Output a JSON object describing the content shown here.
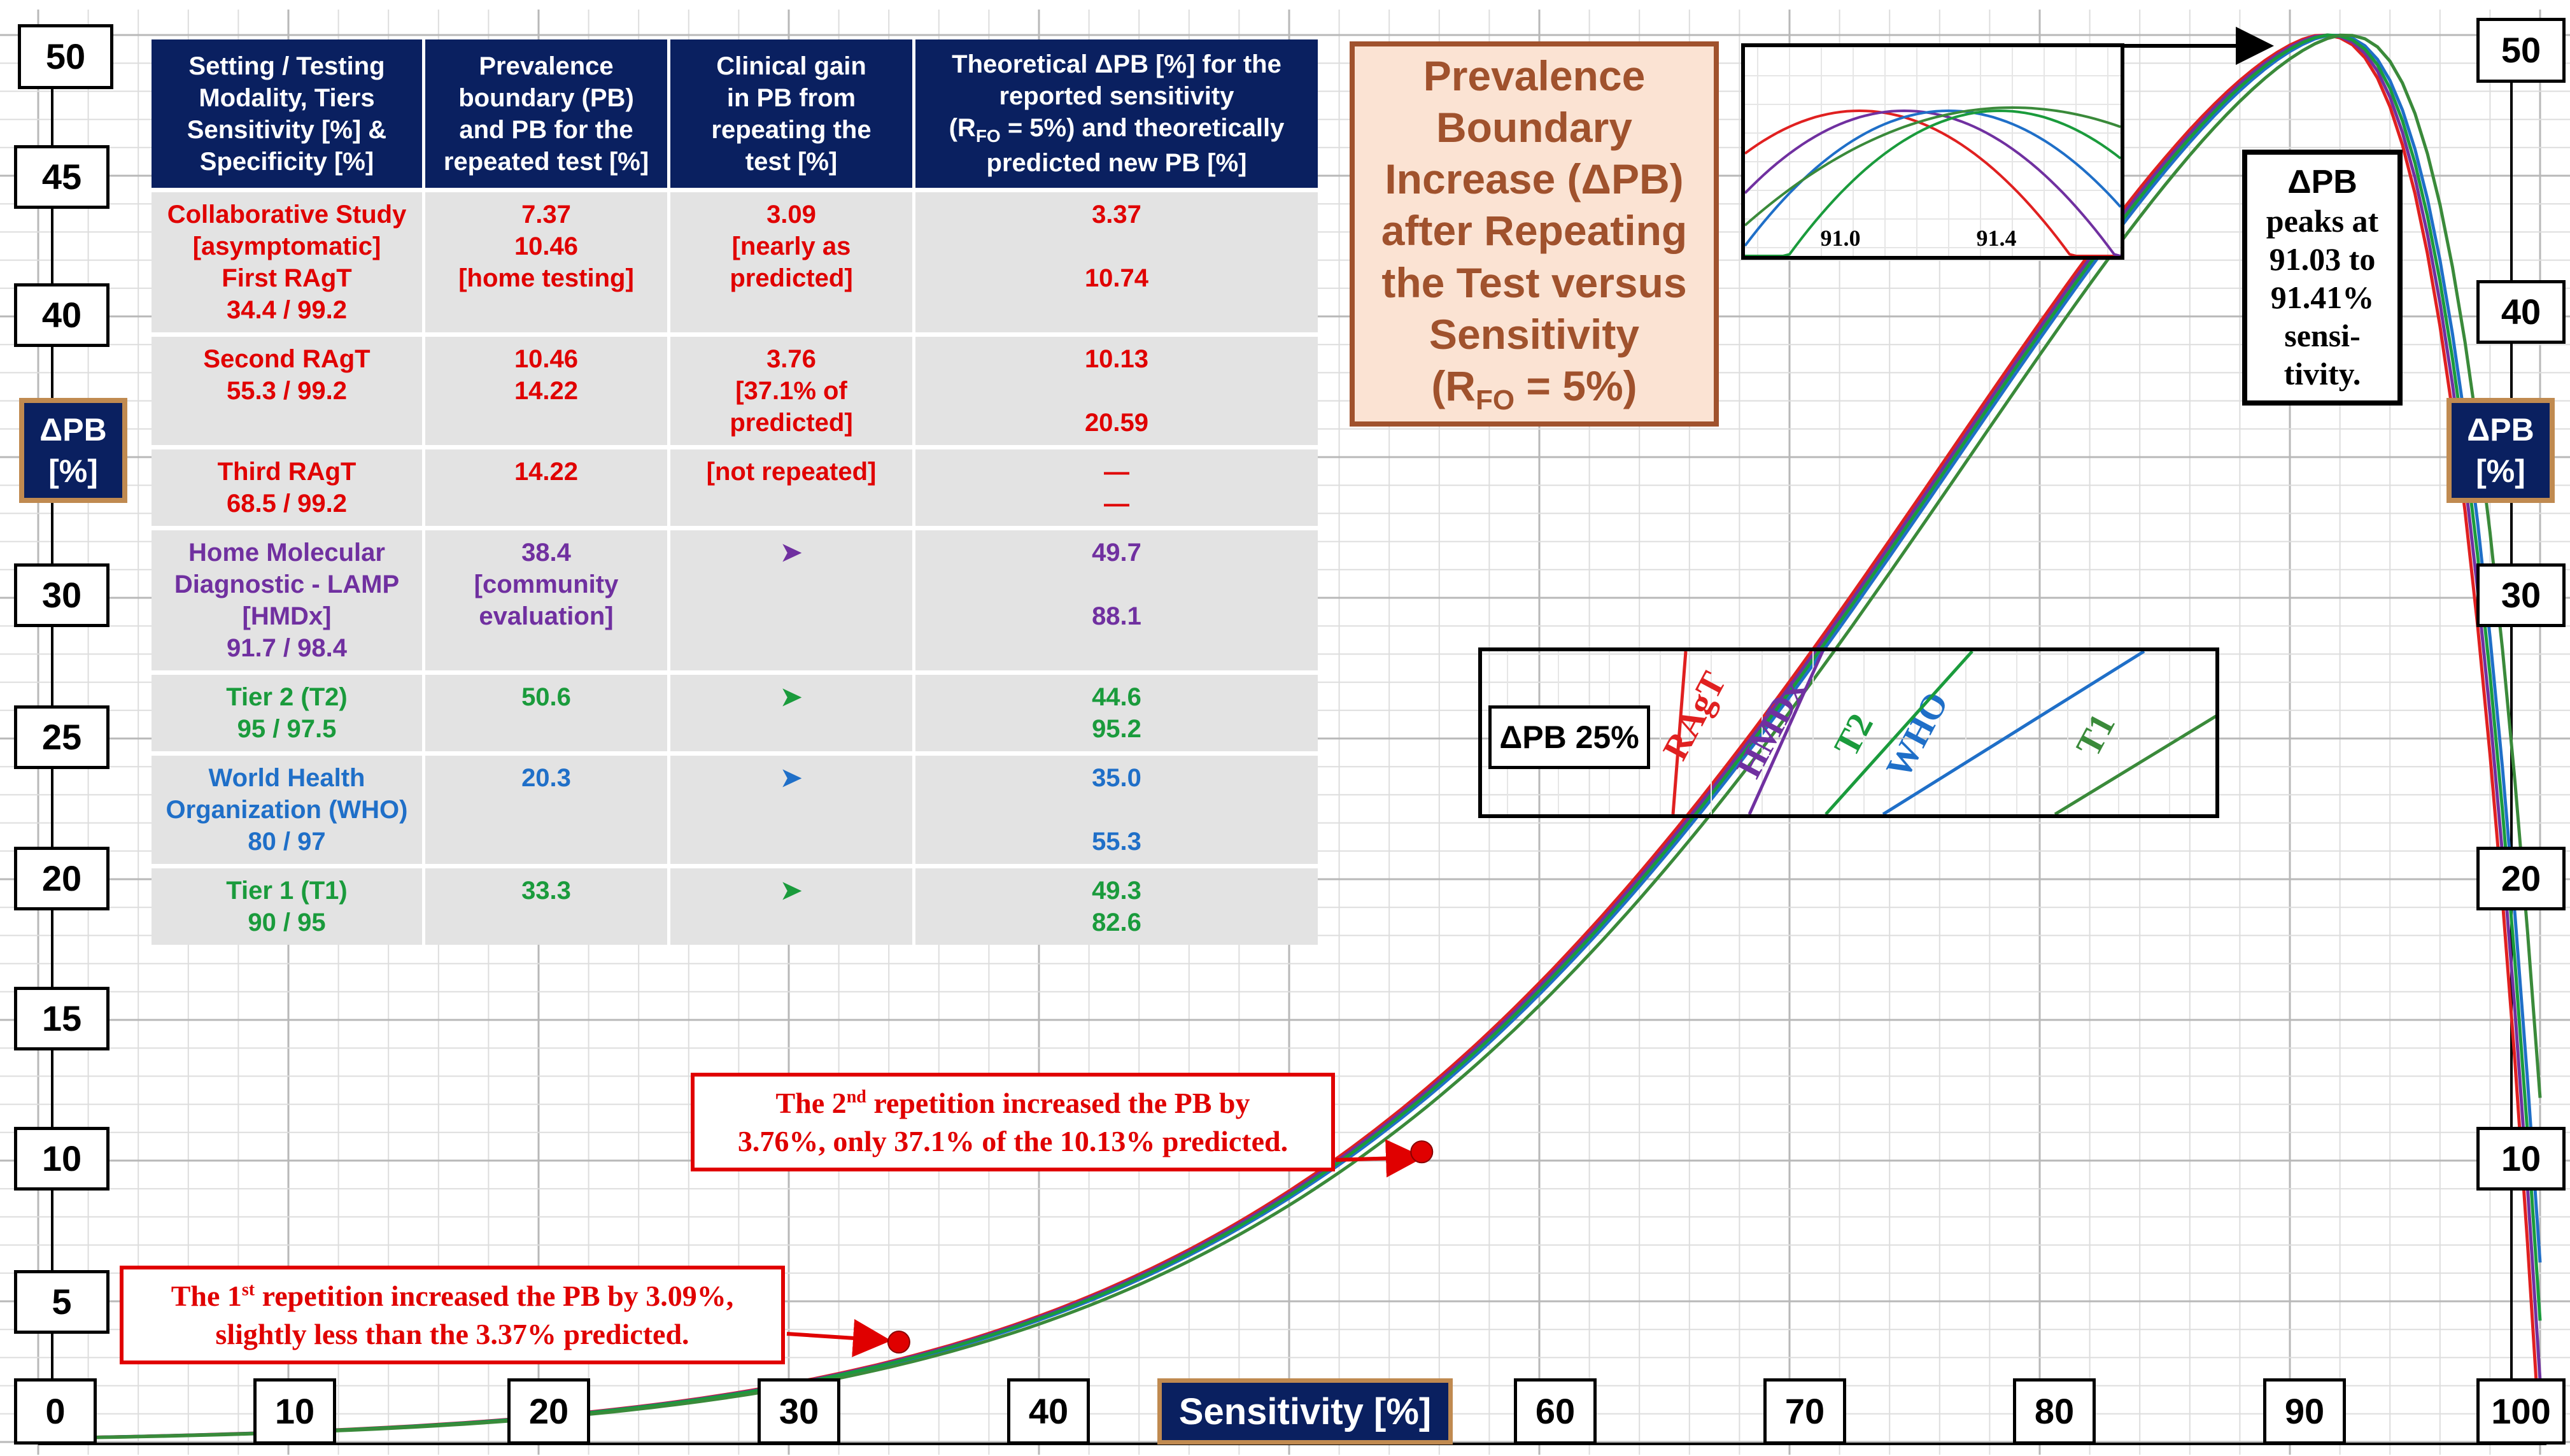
{
  "chart_data": {
    "type": "line",
    "title": "Prevalence Boundary Increase (ΔPB) after Repeating the Test versus Sensitivity",
    "title_lines": [
      "Prevalence",
      "Boundary",
      "Increase (ΔPB)",
      "after Repeating",
      "the Test versus",
      "Sensitivity"
    ],
    "title_rfo": "(R",
    "title_rfo_sub": "FO",
    "title_rfo_end": " = 5%)",
    "xlabel": "Sensitivity [%]",
    "ylabel_line1": "ΔPB",
    "ylabel_line2": "[%]",
    "xlim": [
      0,
      100
    ],
    "ylim": [
      0,
      50
    ],
    "xticks": [
      "0",
      "10",
      "20",
      "30",
      "40",
      "60",
      "70",
      "80",
      "90",
      "100"
    ],
    "yticks_left": [
      "50",
      "45",
      "40",
      "30",
      "25",
      "20",
      "15",
      "10",
      "5"
    ],
    "yticks_right": [
      "50",
      "40",
      "30",
      "20",
      "10"
    ],
    "grid": true,
    "series": [
      {
        "name": "RAgT",
        "color": "#e02020",
        "specificity": 99.2
      },
      {
        "name": "HMDx",
        "color": "#7030a0",
        "specificity": 98.4
      },
      {
        "name": "WHO",
        "color": "#1f6fc8",
        "specificity": 97
      },
      {
        "name": "T2",
        "color": "#1a9b3c",
        "specificity": 97.5
      },
      {
        "name": "T1",
        "color": "#3a8a3a",
        "specificity": 95
      }
    ],
    "points": [
      {
        "x": 34.4,
        "y": 3.37
      },
      {
        "x": 55.3,
        "y": 10.13
      }
    ],
    "annotations": {
      "first_pre": "The 1",
      "first_sup": "st",
      "first_post": " repetition increased the PB by 3.09%,",
      "first_line2": "slightly less than the 3.37% predicted.",
      "second_pre": "The 2",
      "second_sup": "nd",
      "second_post": " repetition increased the PB by",
      "second_line2": "3.76%, only 37.1% of the 10.13% predicted."
    },
    "peak_box": [
      "ΔPB",
      "peaks at",
      "91.03 to",
      "91.41%",
      "sensi-",
      "tivity."
    ],
    "legend": {
      "title": "ΔPB 25%",
      "labels": [
        "RAgT",
        "HMDx",
        "T2",
        "WHO",
        "T1"
      ]
    },
    "inset": {
      "xticks": [
        "91.0",
        "91.4"
      ]
    }
  },
  "table": {
    "headers": [
      "Setting / Testing\nModality, Tiers\nSensitivity [%] &\nSpecificity [%]",
      "Prevalence\nboundary (PB)\nand PB for the\nrepeated test [%]",
      "Clinical gain\nin PB from\nrepeating the\ntest [%]",
      null
    ],
    "header4_a": "Theoretical ΔPB [%] for the\nreported sensitivity\n(R",
    "header4_sub": "FO",
    "header4_b": " = 5%) and theoretically\npredicted new PB [%]",
    "rows": [
      {
        "color": "#e00000",
        "cells": [
          "Collaborative Study\n[asymptomatic]\nFirst RAgT\n34.4 / 99.2",
          "7.37\n10.46\n[home testing]",
          "3.09\n[nearly as\npredicted]",
          "3.37\n\n10.74"
        ]
      },
      {
        "color": "#e00000",
        "cells": [
          "Second RAgT\n55.3 / 99.2",
          "10.46\n14.22",
          "3.76\n[37.1% of\npredicted]",
          "10.13\n\n20.59"
        ]
      },
      {
        "color": "#e00000",
        "cells": [
          "Third RAgT\n68.5 / 99.2",
          "14.22",
          "[not repeated]",
          "—\n—"
        ]
      },
      {
        "color": "#7030a0",
        "cells": [
          "Home Molecular\nDiagnostic - LAMP\n[HMDx]\n91.7 / 98.4",
          "38.4\n[community\nevaluation]",
          "➤",
          "49.7\n\n88.1"
        ]
      },
      {
        "color": "#1a9b3c",
        "cells": [
          "Tier 2 (T2)\n95 / 97.5",
          "50.6",
          "➤",
          "44.6\n95.2"
        ]
      },
      {
        "color": "#1f6fc8",
        "cells": [
          "World Health\nOrganization (WHO)\n80 / 97",
          "20.3",
          "➤",
          "35.0\n\n55.3"
        ]
      },
      {
        "color": "#1a9b3c",
        "cells": [
          "Tier 1 (T1)\n90 / 95",
          "33.3",
          "➤",
          "49.3\n82.6"
        ]
      }
    ]
  }
}
